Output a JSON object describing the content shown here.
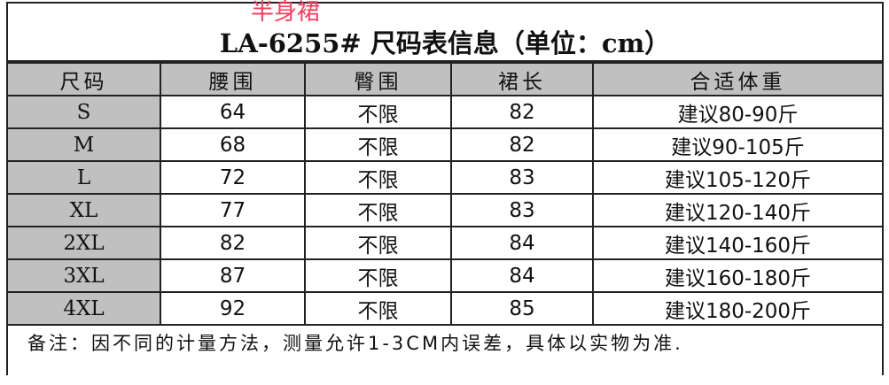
{
  "tag": "半身裙",
  "title": "LA-6255# 尺码表信息（单位：cm）",
  "headers": [
    "尺码",
    "腰围",
    "臀围",
    "裙长",
    "合适体重"
  ],
  "rows": [
    [
      "S",
      "64",
      "不限",
      "82",
      "建议80-90斤"
    ],
    [
      "M",
      "68",
      "不限",
      "82",
      "建议90-105斤"
    ],
    [
      "L",
      "72",
      "不限",
      "83",
      "建议105-120斤"
    ],
    [
      "XL",
      "77",
      "不限",
      "83",
      "建议120-140斤"
    ],
    [
      "2XL",
      "82",
      "不限",
      "84",
      "建议140-160斤"
    ],
    [
      "3XL",
      "87",
      "不限",
      "84",
      "建议160-180斤"
    ],
    [
      "4XL",
      "92",
      "不限",
      "85",
      "建议180-200斤"
    ]
  ],
  "note": "备注：因不同的计量方法，测量允许1-3CM内误差，具体以实物为准.",
  "colors": {
    "header_bg": "#c0c0c0",
    "tag": "#ff3b5c"
  }
}
